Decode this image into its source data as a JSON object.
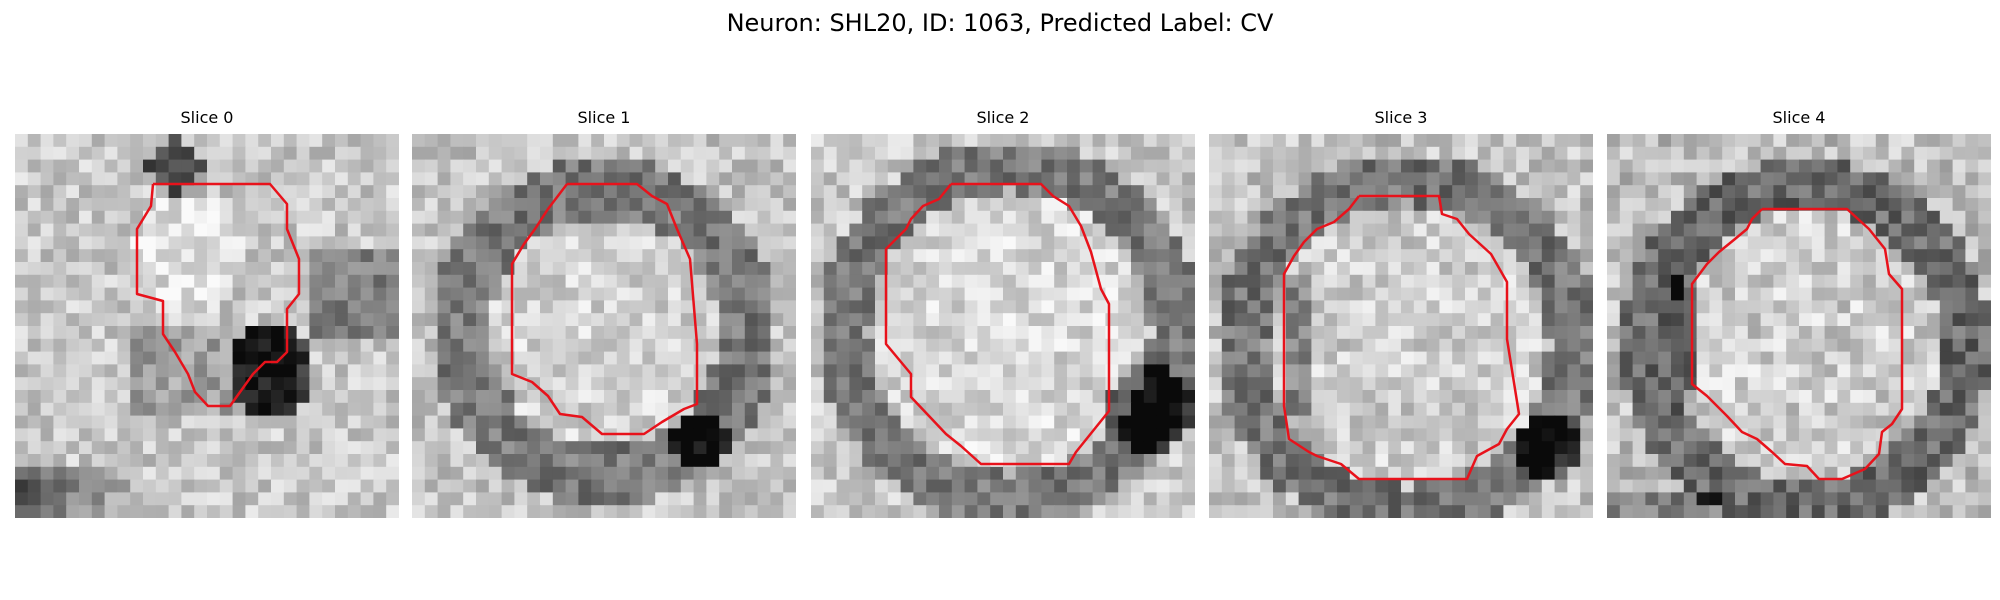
{
  "figure": {
    "title": "Neuron: SHL20, ID: 1063, Predicted Label: CV",
    "contour_color": "#e8121b"
  },
  "slices": [
    {
      "title": "Slice 0"
    },
    {
      "title": "Slice 1"
    },
    {
      "title": "Slice 2"
    },
    {
      "title": "Slice 3"
    },
    {
      "title": "Slice 4"
    }
  ]
}
